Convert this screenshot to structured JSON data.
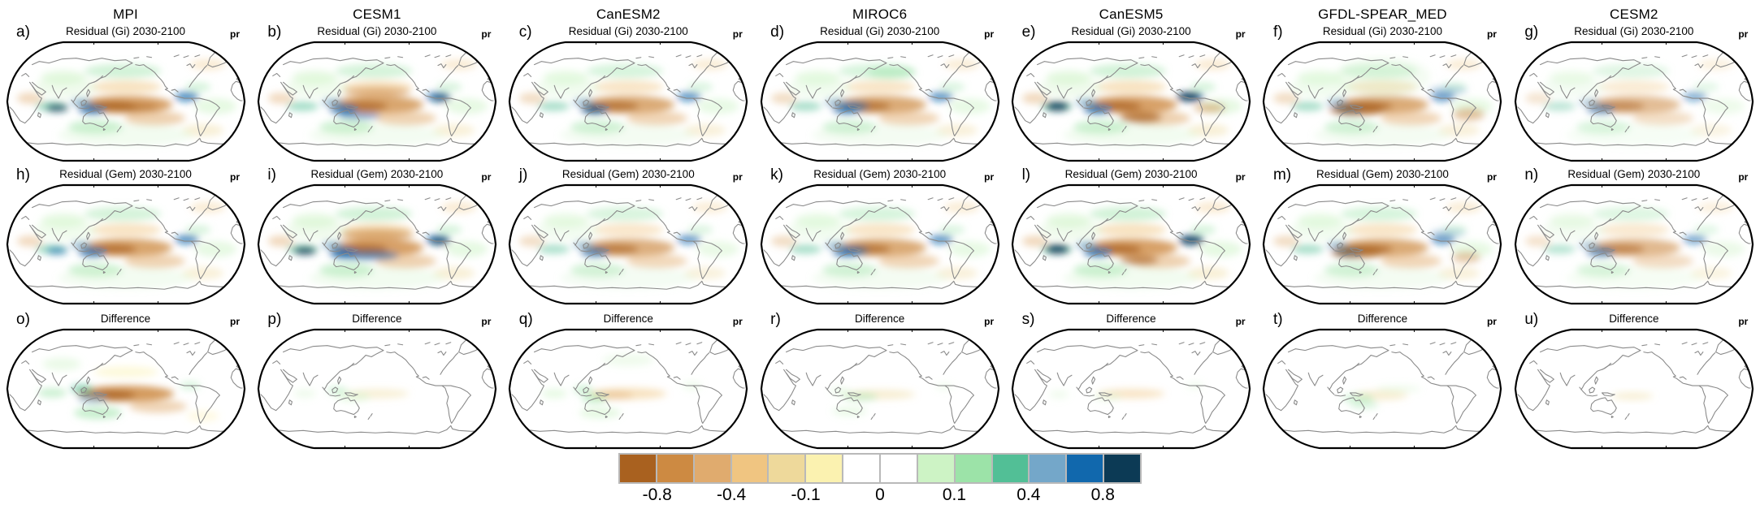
{
  "figure": {
    "models": [
      "MPI",
      "CESM1",
      "CanESM2",
      "MIROC6",
      "CanESM5",
      "GFDL-SPEAR_MED",
      "CESM2"
    ],
    "row_subtitles": [
      "Residual (Gi) 2030-2100",
      "Residual (Gem) 2030-2100",
      "Difference"
    ],
    "unit_label": "pr"
  },
  "chart_data": {
    "type": "heatmap",
    "subtype": "map-grid",
    "projection": "robinson-pacific-centered",
    "variable": "pr",
    "grid": {
      "rows": 3,
      "cols": 7
    },
    "coast_color": "#8a8a8a",
    "outline_color": "#000000",
    "colorbar": {
      "tick_labels": [
        "-0.8",
        "-0.4",
        "-0.1",
        "0",
        "0.1",
        "0.4",
        "0.8"
      ],
      "tick_boundary_indices": [
        1,
        3,
        5,
        7,
        9,
        11,
        13
      ],
      "colors": [
        "#a9611f",
        "#cd8a42",
        "#e0ab6e",
        "#f0c581",
        "#eed99b",
        "#fbf2b0",
        "#ffffff",
        "#ffffff",
        "#cdf3c5",
        "#9ce3a8",
        "#52bf96",
        "#74a7c9",
        "#1168ad",
        "#0c3a55"
      ],
      "border_color": "#b9b9b9"
    },
    "bases": {
      "res": [
        [
          150,
          80,
          58,
          11,
          1,
          0.8
        ],
        [
          133,
          82,
          30,
          6,
          0,
          0.75
        ],
        [
          186,
          97,
          38,
          9,
          2,
          0.55
        ],
        [
          150,
          58,
          44,
          8,
          3,
          0.5
        ],
        [
          108,
          86,
          17,
          6,
          12,
          0.8
        ],
        [
          94,
          77,
          13,
          5,
          11,
          0.7
        ],
        [
          226,
          70,
          15,
          6,
          12,
          0.75
        ],
        [
          57,
          82,
          20,
          6,
          10,
          0.55
        ],
        [
          146,
          38,
          48,
          9,
          9,
          0.45
        ],
        [
          112,
          108,
          34,
          9,
          9,
          0.5
        ],
        [
          262,
          82,
          26,
          10,
          8,
          0.5
        ],
        [
          72,
          46,
          28,
          9,
          8,
          0.5
        ],
        [
          246,
          112,
          26,
          8,
          4,
          0.4
        ],
        [
          252,
          30,
          22,
          7,
          3,
          0.35
        ],
        [
          30,
          72,
          16,
          7,
          2,
          0.45
        ],
        [
          240,
          58,
          16,
          6,
          9,
          0.4
        ],
        [
          150,
          118,
          85,
          14,
          8,
          0.25
        ],
        [
          75,
          58,
          40,
          13,
          8,
          0.3
        ]
      ],
      "none": []
    },
    "panels": [
      {
        "letter": "a)",
        "row": 0,
        "col": 0,
        "model": "MPI",
        "title": "Residual (Gi) 2030-2100",
        "unit": "pr",
        "base": "res",
        "scale": 1,
        "extra": [
          [
            64,
            84,
            14,
            5,
            13,
            0.7
          ],
          [
            150,
            83,
            40,
            5,
            0,
            0.5
          ]
        ]
      },
      {
        "letter": "b)",
        "row": 0,
        "col": 1,
        "model": "CESM1",
        "title": "Residual (Gi) 2030-2100",
        "unit": "pr",
        "base": "res",
        "scale": 0.95,
        "extra": [
          [
            150,
            64,
            42,
            6,
            1,
            0.6
          ],
          [
            128,
            94,
            26,
            5,
            12,
            0.55
          ],
          [
            230,
            72,
            12,
            5,
            13,
            0.6
          ]
        ]
      },
      {
        "letter": "c)",
        "row": 0,
        "col": 2,
        "model": "CanESM2",
        "title": "Residual (Gi) 2030-2100",
        "unit": "pr",
        "base": "res",
        "scale": 0.9,
        "extra": [
          [
            108,
            86,
            14,
            5,
            13,
            0.6
          ]
        ]
      },
      {
        "letter": "d)",
        "row": 0,
        "col": 3,
        "model": "MIROC6",
        "title": "Residual (Gi) 2030-2100",
        "unit": "pr",
        "base": "res",
        "scale": 0.9,
        "extra": [
          [
            118,
            82,
            18,
            6,
            12,
            0.6
          ],
          [
            165,
            40,
            30,
            8,
            9,
            0.5
          ]
        ]
      },
      {
        "letter": "e)",
        "row": 0,
        "col": 4,
        "model": "CanESM5",
        "title": "Residual (Gi) 2030-2100",
        "unit": "pr",
        "base": "res",
        "scale": 1,
        "extra": [
          [
            58,
            82,
            15,
            6,
            13,
            0.85
          ],
          [
            222,
            70,
            15,
            6,
            13,
            0.85
          ],
          [
            162,
            96,
            26,
            7,
            0,
            0.7
          ],
          [
            248,
            84,
            20,
            6,
            1,
            0.5
          ]
        ]
      },
      {
        "letter": "f)",
        "row": 0,
        "col": 5,
        "model": "GFDL-SPEAR_MED",
        "title": "Residual (Gi) 2030-2100",
        "unit": "pr",
        "base": "res",
        "scale": 0.9,
        "extra": [
          [
            118,
            86,
            34,
            8,
            0,
            0.7
          ],
          [
            258,
            92,
            20,
            8,
            1,
            0.55
          ],
          [
            232,
            62,
            24,
            5,
            11,
            0.5
          ],
          [
            150,
            45,
            60,
            25,
            8,
            0.25
          ]
        ]
      },
      {
        "letter": "g)",
        "row": 0,
        "col": 6,
        "model": "CESM2",
        "title": "Residual (Gi) 2030-2100",
        "unit": "pr",
        "base": "res",
        "scale": 0.7,
        "extra": []
      },
      {
        "letter": "h)",
        "row": 1,
        "col": 0,
        "model": "MPI",
        "title": "Residual (Gem) 2030-2100",
        "unit": "pr",
        "base": "res",
        "scale": 0.95,
        "extra": [
          [
            64,
            84,
            13,
            5,
            12,
            0.6
          ]
        ]
      },
      {
        "letter": "i)",
        "row": 1,
        "col": 1,
        "model": "CESM1",
        "title": "Residual (Gem) 2030-2100",
        "unit": "pr",
        "base": "res",
        "scale": 1,
        "extra": [
          [
            135,
            90,
            42,
            6,
            12,
            0.6
          ],
          [
            150,
            64,
            46,
            7,
            1,
            0.65
          ],
          [
            60,
            84,
            14,
            5,
            13,
            0.8
          ],
          [
            228,
            72,
            13,
            5,
            13,
            0.7
          ]
        ]
      },
      {
        "letter": "j)",
        "row": 1,
        "col": 2,
        "model": "CanESM2",
        "title": "Residual (Gem) 2030-2100",
        "unit": "pr",
        "base": "res",
        "scale": 0.85,
        "extra": []
      },
      {
        "letter": "k)",
        "row": 1,
        "col": 3,
        "model": "MIROC6",
        "title": "Residual (Gem) 2030-2100",
        "unit": "pr",
        "base": "res",
        "scale": 0.9,
        "extra": [
          [
            118,
            84,
            18,
            6,
            12,
            0.55
          ]
        ]
      },
      {
        "letter": "l)",
        "row": 1,
        "col": 4,
        "model": "CanESM5",
        "title": "Residual (Gem) 2030-2100",
        "unit": "pr",
        "base": "res",
        "scale": 1,
        "extra": [
          [
            58,
            82,
            15,
            6,
            13,
            0.85
          ],
          [
            225,
            71,
            15,
            6,
            13,
            0.8
          ],
          [
            160,
            96,
            24,
            6,
            0,
            0.6
          ]
        ]
      },
      {
        "letter": "m)",
        "row": 1,
        "col": 5,
        "model": "GFDL-SPEAR_MED",
        "title": "Residual (Gem) 2030-2100",
        "unit": "pr",
        "base": "res",
        "scale": 0.9,
        "extra": [
          [
            118,
            86,
            32,
            8,
            0,
            0.65
          ],
          [
            255,
            92,
            18,
            7,
            1,
            0.5
          ],
          [
            232,
            62,
            22,
            5,
            11,
            0.45
          ]
        ]
      },
      {
        "letter": "n)",
        "row": 1,
        "col": 6,
        "model": "CESM2",
        "title": "Residual (Gem) 2030-2100",
        "unit": "pr",
        "base": "res",
        "scale": 0.75,
        "extra": []
      },
      {
        "letter": "o)",
        "row": 2,
        "col": 0,
        "model": "MPI",
        "title": "Difference",
        "unit": "pr",
        "base": "none",
        "scale": 1,
        "extra": [
          [
            150,
            82,
            60,
            10,
            1,
            0.85
          ],
          [
            128,
            84,
            34,
            6,
            0,
            0.8
          ],
          [
            190,
            98,
            36,
            8,
            2,
            0.5
          ],
          [
            108,
            88,
            18,
            6,
            11,
            0.55
          ],
          [
            95,
            76,
            14,
            6,
            10,
            0.6
          ],
          [
            115,
            106,
            30,
            8,
            9,
            0.55
          ],
          [
            58,
            81,
            18,
            6,
            9,
            0.5
          ],
          [
            150,
            55,
            40,
            7,
            5,
            0.45
          ],
          [
            230,
            72,
            13,
            5,
            9,
            0.4
          ],
          [
            70,
            45,
            24,
            8,
            8,
            0.4
          ],
          [
            246,
            110,
            20,
            7,
            5,
            0.35
          ]
        ]
      },
      {
        "letter": "p)",
        "row": 2,
        "col": 1,
        "model": "CESM1",
        "title": "Difference",
        "unit": "pr",
        "base": "none",
        "scale": 1,
        "extra": [
          [
            150,
            82,
            40,
            6,
            4,
            0.4
          ],
          [
            120,
            86,
            22,
            6,
            8,
            0.45
          ],
          [
            100,
            78,
            13,
            5,
            9,
            0.4
          ],
          [
            60,
            82,
            14,
            5,
            8,
            0.35
          ]
        ]
      },
      {
        "letter": "q)",
        "row": 2,
        "col": 2,
        "model": "CanESM2",
        "title": "Difference",
        "unit": "pr",
        "base": "none",
        "scale": 1,
        "extra": [
          [
            150,
            82,
            48,
            7,
            3,
            0.5
          ],
          [
            130,
            84,
            26,
            5,
            2,
            0.45
          ],
          [
            108,
            88,
            16,
            6,
            9,
            0.55
          ],
          [
            94,
            77,
            12,
            5,
            9,
            0.5
          ],
          [
            115,
            106,
            26,
            7,
            8,
            0.5
          ],
          [
            58,
            82,
            16,
            6,
            8,
            0.45
          ],
          [
            150,
            40,
            32,
            8,
            8,
            0.3
          ],
          [
            230,
            72,
            12,
            5,
            8,
            0.35
          ]
        ]
      },
      {
        "letter": "r)",
        "row": 2,
        "col": 3,
        "model": "MIROC6",
        "title": "Difference",
        "unit": "pr",
        "base": "none",
        "scale": 1,
        "extra": [
          [
            150,
            83,
            44,
            6,
            4,
            0.45
          ],
          [
            125,
            86,
            22,
            5,
            9,
            0.45
          ],
          [
            100,
            79,
            12,
            5,
            8,
            0.4
          ],
          [
            112,
            104,
            22,
            6,
            8,
            0.4
          ],
          [
            230,
            73,
            11,
            4,
            8,
            0.3
          ]
        ]
      },
      {
        "letter": "s)",
        "row": 2,
        "col": 4,
        "model": "CanESM5",
        "title": "Difference",
        "unit": "pr",
        "base": "none",
        "scale": 1,
        "extra": [
          [
            150,
            82,
            42,
            6,
            3,
            0.45
          ],
          [
            120,
            86,
            18,
            5,
            8,
            0.35
          ],
          [
            230,
            72,
            11,
            4,
            8,
            0.3
          ],
          [
            60,
            83,
            12,
            5,
            8,
            0.3
          ]
        ]
      },
      {
        "letter": "t)",
        "row": 2,
        "col": 5,
        "model": "GFDL-SPEAR_MED",
        "title": "Difference",
        "unit": "pr",
        "base": "none",
        "scale": 1,
        "extra": [
          [
            148,
            84,
            34,
            6,
            4,
            0.45
          ],
          [
            120,
            88,
            20,
            6,
            9,
            0.4
          ],
          [
            128,
            96,
            18,
            5,
            9,
            0.35
          ],
          [
            170,
            76,
            28,
            4,
            8,
            0.35
          ]
        ]
      },
      {
        "letter": "u)",
        "row": 2,
        "col": 6,
        "model": "CESM2",
        "title": "Difference",
        "unit": "pr",
        "base": "none",
        "scale": 1,
        "extra": [
          [
            148,
            85,
            26,
            5,
            4,
            0.4
          ]
        ]
      }
    ]
  }
}
